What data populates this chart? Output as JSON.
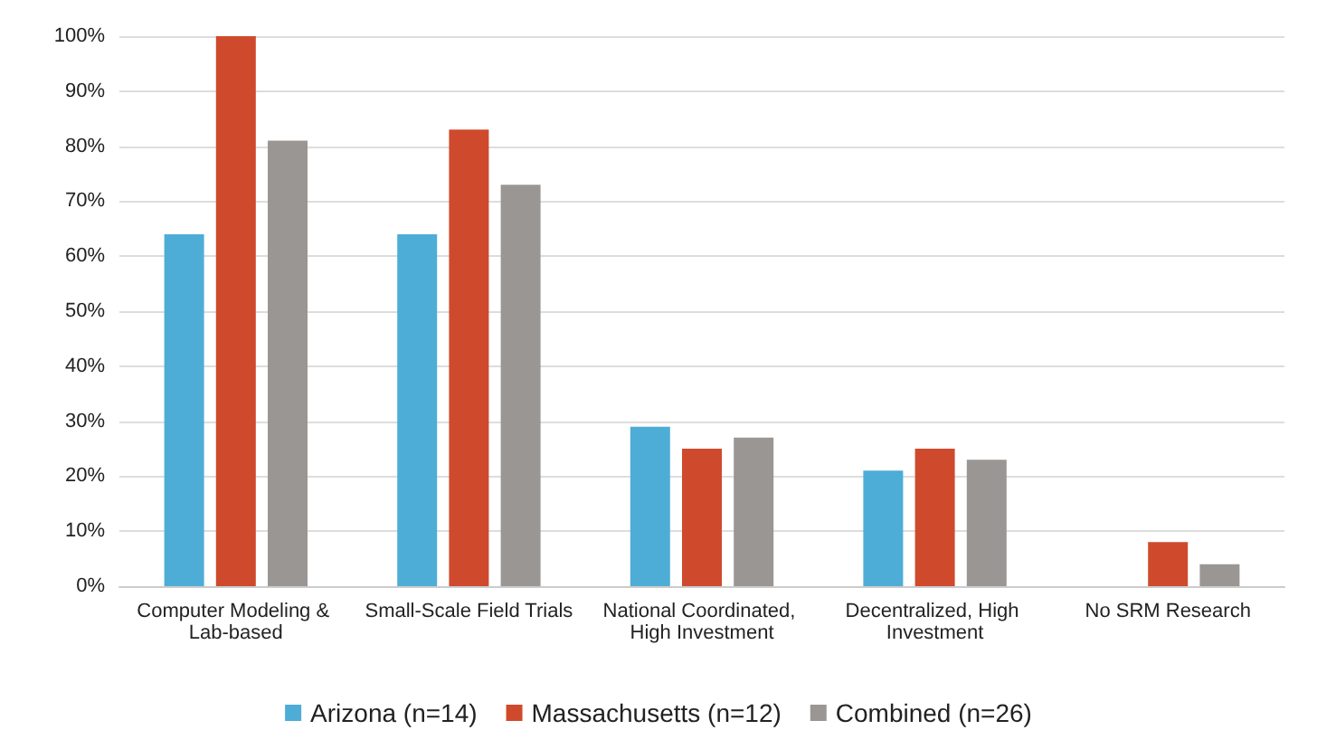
{
  "chart_data": {
    "type": "bar",
    "categories": [
      "Computer Modeling & Lab-based",
      "Small-Scale Field Trials",
      "National Coordinated, High Investment",
      "Decentralized, High Investment",
      "No SRM Research"
    ],
    "series": [
      {
        "name": "Arizona (n=14)",
        "color": "#4eadd6",
        "values": [
          64,
          64,
          29,
          21,
          0
        ]
      },
      {
        "name": "Massachusetts (n=12)",
        "color": "#cf4a2c",
        "values": [
          100,
          83,
          25,
          25,
          8
        ]
      },
      {
        "name": "Combined (n=26)",
        "color": "#9a9694",
        "values": [
          81,
          73,
          27,
          23,
          4
        ]
      }
    ],
    "ylim": [
      0,
      100
    ],
    "yticks": [
      {
        "value": 0,
        "label": "0%"
      },
      {
        "value": 10,
        "label": "10%"
      },
      {
        "value": 20,
        "label": "20%"
      },
      {
        "value": 30,
        "label": "30%"
      },
      {
        "value": 40,
        "label": "40%"
      },
      {
        "value": 50,
        "label": "50%"
      },
      {
        "value": 60,
        "label": "60%"
      },
      {
        "value": 70,
        "label": "70%"
      },
      {
        "value": 80,
        "label": "80%"
      },
      {
        "value": 90,
        "label": "90%"
      },
      {
        "value": 100,
        "label": "100%"
      }
    ],
    "grid": "y",
    "legend": "bottom"
  }
}
